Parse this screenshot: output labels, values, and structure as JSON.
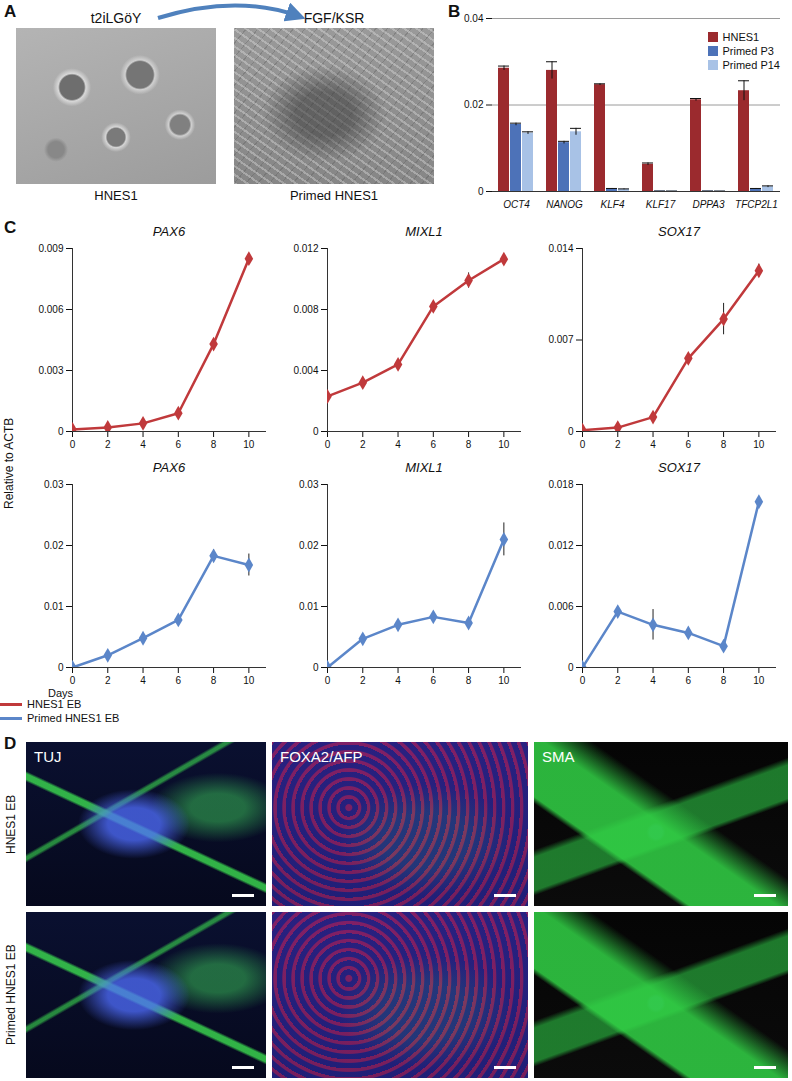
{
  "panel_labels": [
    "A",
    "B",
    "C",
    "D"
  ],
  "panel_a": {
    "images": [
      {
        "condition": "t2iLGöY",
        "cells": "HNES1"
      },
      {
        "condition": "FGF/KSR",
        "cells": "Primed HNES1"
      }
    ]
  },
  "chart_data": [
    {
      "type": "bar",
      "categories": [
        "OCT4",
        "NANOG",
        "KLF4",
        "KLF17",
        "DPPA3",
        "TFCP2L1"
      ],
      "ylim": [
        0,
        0.04
      ],
      "yticks": [
        0,
        0.02,
        0.04
      ],
      "grid": true,
      "legend": "upper right",
      "series": [
        {
          "name": "HNES1",
          "color": "#9b2a2e",
          "values": [
            0.0285,
            0.028,
            0.0247,
            0.0063,
            0.0212,
            0.0233
          ],
          "errors": [
            0.0005,
            0.002,
            0.0002,
            0.0003,
            0.0003,
            0.0023
          ]
        },
        {
          "name": "Primed P3",
          "color": "#4d72b8",
          "values": [
            0.0155,
            0.0113,
            0.0006,
            0.0001,
            0.0001,
            0.0006
          ],
          "errors": [
            0.0003,
            0.0003,
            0.0001,
            0.0,
            0.0,
            0.0001
          ]
        },
        {
          "name": "Primed P14",
          "color": "#a8c2e6",
          "values": [
            0.0135,
            0.0138,
            0.0005,
            0.0001,
            0.0001,
            0.0011
          ],
          "errors": [
            0.0003,
            0.0008,
            0.0001,
            0.0,
            0.0,
            0.0002
          ]
        }
      ]
    },
    {
      "type": "line",
      "title": "PAX6",
      "x": [
        0,
        2,
        4,
        6,
        8,
        10
      ],
      "xlim": [
        0,
        11
      ],
      "xticks": [
        0,
        2,
        4,
        6,
        8,
        10
      ],
      "ylim": [
        0,
        0.009
      ],
      "yticks": [
        0,
        0.003,
        0.006,
        0.009
      ],
      "grid": false,
      "series": [
        {
          "name": "HNES1 EB",
          "color": "#c0393b",
          "marker": "diamond",
          "line_style": "solid",
          "values": [
            0.0001,
            0.0002,
            0.0004,
            0.0009,
            0.0043,
            0.0085
          ],
          "errors": [
            0,
            0,
            0,
            0.0001,
            0.0001,
            0.0002
          ]
        }
      ]
    },
    {
      "type": "line",
      "title": "MIXL1",
      "x": [
        0,
        2,
        4,
        6,
        8,
        10
      ],
      "xlim": [
        0,
        11
      ],
      "xticks": [
        0,
        2,
        4,
        6,
        8,
        10
      ],
      "ylim": [
        0,
        0.012
      ],
      "yticks": [
        0,
        0.004,
        0.008,
        0.012
      ],
      "grid": false,
      "series": [
        {
          "name": "HNES1 EB",
          "color": "#c0393b",
          "marker": "diamond",
          "line_style": "solid",
          "values": [
            0.0023,
            0.0032,
            0.0044,
            0.0082,
            0.0099,
            0.0113
          ],
          "errors": [
            0.0001,
            0.0001,
            0.0003,
            0.0003,
            0.0005,
            0.0001
          ]
        }
      ]
    },
    {
      "type": "line",
      "title": "SOX17",
      "x": [
        0,
        2,
        4,
        6,
        8,
        10
      ],
      "xlim": [
        0,
        11
      ],
      "xticks": [
        0,
        2,
        4,
        6,
        8,
        10
      ],
      "ylim": [
        0,
        0.014
      ],
      "yticks": [
        0,
        0.007,
        0.014
      ],
      "grid": false,
      "series": [
        {
          "name": "HNES1 EB",
          "color": "#c0393b",
          "marker": "diamond",
          "line_style": "solid",
          "values": [
            0.0001,
            0.0003,
            0.0011,
            0.0056,
            0.0086,
            0.0123
          ],
          "errors": [
            0,
            0,
            0.0001,
            0.0002,
            0.0012,
            0.0005
          ]
        }
      ]
    },
    {
      "type": "line",
      "title": "PAX6",
      "x": [
        0,
        2,
        4,
        6,
        8,
        10
      ],
      "xlim": [
        0,
        11
      ],
      "xticks": [
        0,
        2,
        4,
        6,
        8,
        10
      ],
      "ylim": [
        0,
        0.03
      ],
      "yticks": [
        0,
        0.01,
        0.02,
        0.03
      ],
      "grid": false,
      "series": [
        {
          "name": "Primed HNES1 EB",
          "color": "#5b86c9",
          "marker": "diamond",
          "line_style": "solid",
          "values": [
            0,
            0.002,
            0.0048,
            0.0078,
            0.0183,
            0.0168
          ],
          "errors": [
            0,
            0.0001,
            0.0001,
            0.0001,
            0.001,
            0.0018
          ]
        }
      ]
    },
    {
      "type": "line",
      "title": "MIXL1",
      "x": [
        0,
        2,
        4,
        6,
        8,
        10
      ],
      "xlim": [
        0,
        11
      ],
      "xticks": [
        0,
        2,
        4,
        6,
        8,
        10
      ],
      "ylim": [
        0,
        0.03
      ],
      "yticks": [
        0,
        0.01,
        0.02,
        0.03
      ],
      "grid": false,
      "series": [
        {
          "name": "Primed HNES1 EB",
          "color": "#5b86c9",
          "marker": "diamond",
          "line_style": "solid",
          "values": [
            0,
            0.0047,
            0.007,
            0.0083,
            0.0073,
            0.021
          ],
          "errors": [
            0,
            0.0001,
            0.0002,
            0.0002,
            0.0002,
            0.0027
          ]
        }
      ]
    },
    {
      "type": "line",
      "title": "SOX17",
      "x": [
        0,
        2,
        4,
        6,
        8,
        10
      ],
      "xlim": [
        0,
        11
      ],
      "xticks": [
        0,
        2,
        4,
        6,
        8,
        10
      ],
      "ylim": [
        0,
        0.018
      ],
      "yticks": [
        0,
        0.006,
        0.012,
        0.018
      ],
      "grid": false,
      "series": [
        {
          "name": "Primed HNES1 EB",
          "color": "#5b86c9",
          "marker": "diamond",
          "line_style": "solid",
          "values": [
            0,
            0.0055,
            0.0042,
            0.0034,
            0.0021,
            0.0163
          ],
          "errors": [
            0,
            0.0002,
            0.0015,
            0.0002,
            0.0002,
            0.0004
          ]
        }
      ]
    }
  ],
  "panel_c": {
    "y_label": "Relative to ACTB",
    "x_label": "Days",
    "legend": "lower right"
  },
  "panel_d": {
    "stains": [
      "TUJ",
      "FOXA2/AFP",
      "SMA"
    ],
    "rows": [
      "HNES1 EB",
      "Primed HNES1 EB"
    ]
  }
}
